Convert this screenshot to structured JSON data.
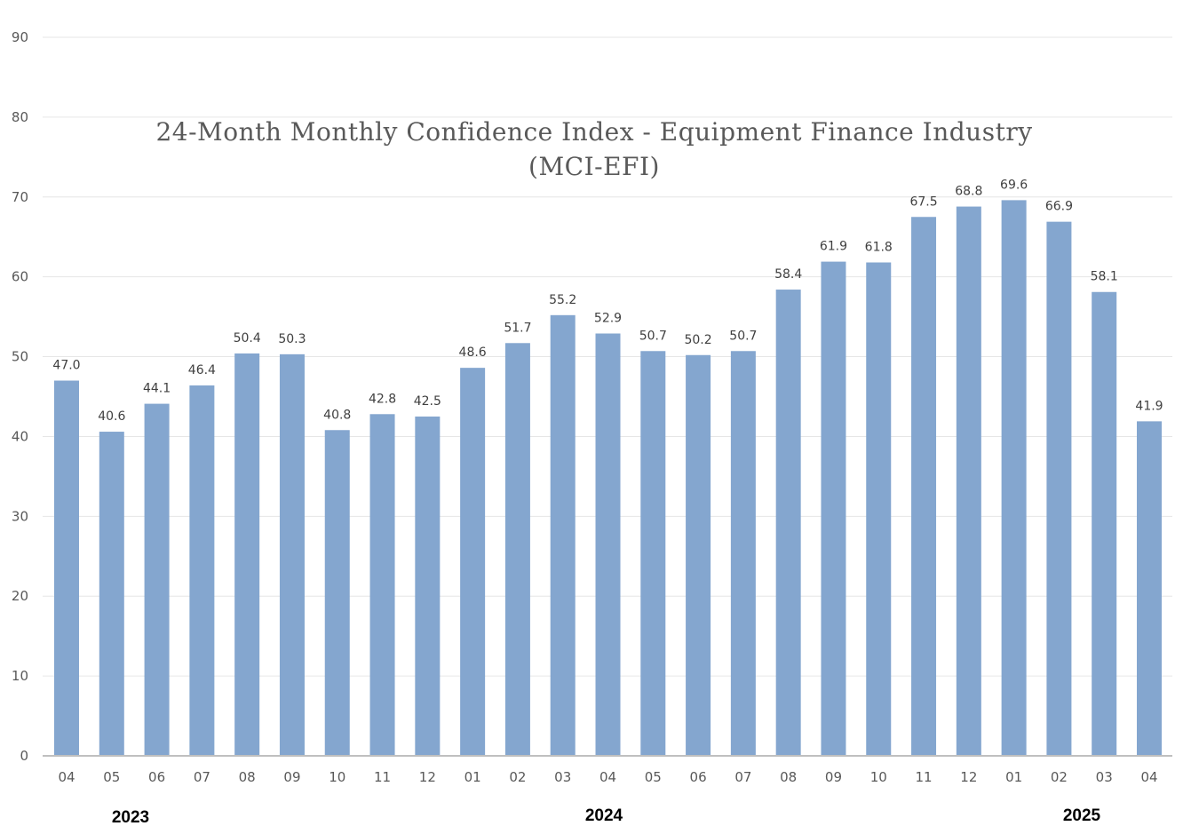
{
  "chart_data": {
    "type": "bar",
    "title": "24-Month Monthly Confidence Index - Equipment Finance Industry",
    "subtitle": "(MCI-EFI)",
    "xlabel": "",
    "ylabel": "",
    "ylim": [
      0,
      90
    ],
    "yticks": [
      "0",
      "10",
      "20",
      "30",
      "40",
      "50",
      "60",
      "70",
      "80",
      "90"
    ],
    "grid": true,
    "categories": [
      "04",
      "05",
      "06",
      "07",
      "08",
      "09",
      "10",
      "11",
      "12",
      "01",
      "02",
      "03",
      "04",
      "05",
      "06",
      "07",
      "08",
      "09",
      "10",
      "11",
      "12",
      "01",
      "02",
      "03",
      "04"
    ],
    "values": [
      47.0,
      40.6,
      44.1,
      46.4,
      50.4,
      50.3,
      40.8,
      42.8,
      42.5,
      48.6,
      51.7,
      55.2,
      52.9,
      50.7,
      50.2,
      50.7,
      58.4,
      61.9,
      61.8,
      67.5,
      68.8,
      69.6,
      66.9,
      58.1,
      41.9
    ],
    "data_labels": [
      "47.0",
      "40.6",
      "44.1",
      "46.4",
      "50.4",
      "50.3",
      "40.8",
      "42.8",
      "42.5",
      "48.6",
      "51.7",
      "55.2",
      "52.9",
      "50.7",
      "50.2",
      "50.7",
      "58.4",
      "61.9",
      "61.8",
      "67.5",
      "68.8",
      "69.6",
      "66.9",
      "58.1",
      "41.9"
    ],
    "year_labels": [
      "2023",
      "2024",
      "2025"
    ],
    "bar_color": "#84a6cf",
    "grid_color": "#e6e6e6",
    "axis_color": "#bfbfbf"
  }
}
